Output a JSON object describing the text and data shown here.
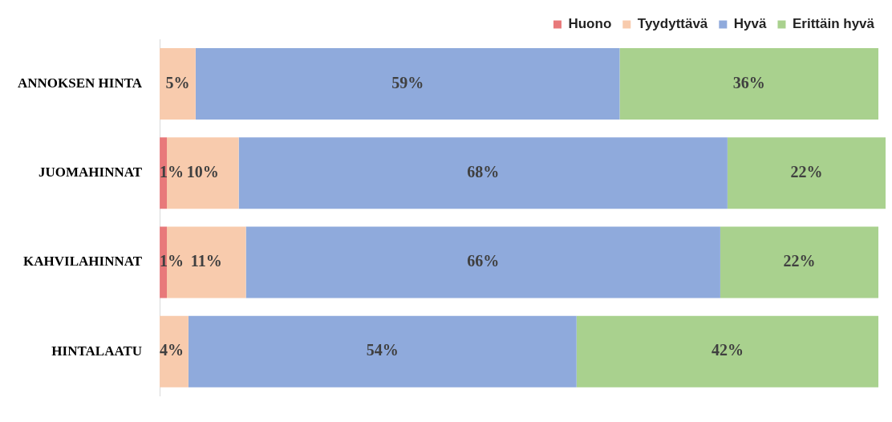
{
  "chart_data": {
    "type": "bar",
    "orientation": "horizontal",
    "stacked": true,
    "categories": [
      "ANNOKSEN HINTA",
      "JUOMAHINNAT",
      "KAHVILAHINNAT",
      "HINTALAATU"
    ],
    "series": [
      {
        "name": "Huono",
        "color": "#e8797a",
        "values": [
          null,
          1,
          1,
          null
        ],
        "value_labels": [
          null,
          "1%",
          "1%",
          null
        ]
      },
      {
        "name": "Tyydyttävä",
        "color": "#f8cbad",
        "values": [
          5,
          10,
          11,
          4
        ],
        "value_labels": [
          "5%",
          "10%",
          "11%",
          "4%"
        ]
      },
      {
        "name": "Hyvä",
        "color": "#8faadc",
        "values": [
          59,
          68,
          66,
          54
        ],
        "value_labels": [
          "59%",
          "68%",
          "66%",
          "54%"
        ]
      },
      {
        "name": "Erittäin hyvä",
        "color": "#a9d18e",
        "values": [
          36,
          22,
          22,
          42
        ],
        "value_labels": [
          "36%",
          "22%",
          "22%",
          "42%"
        ]
      }
    ],
    "xlim": [
      0,
      101
    ],
    "tick_labels": "y",
    "legend": "top"
  }
}
